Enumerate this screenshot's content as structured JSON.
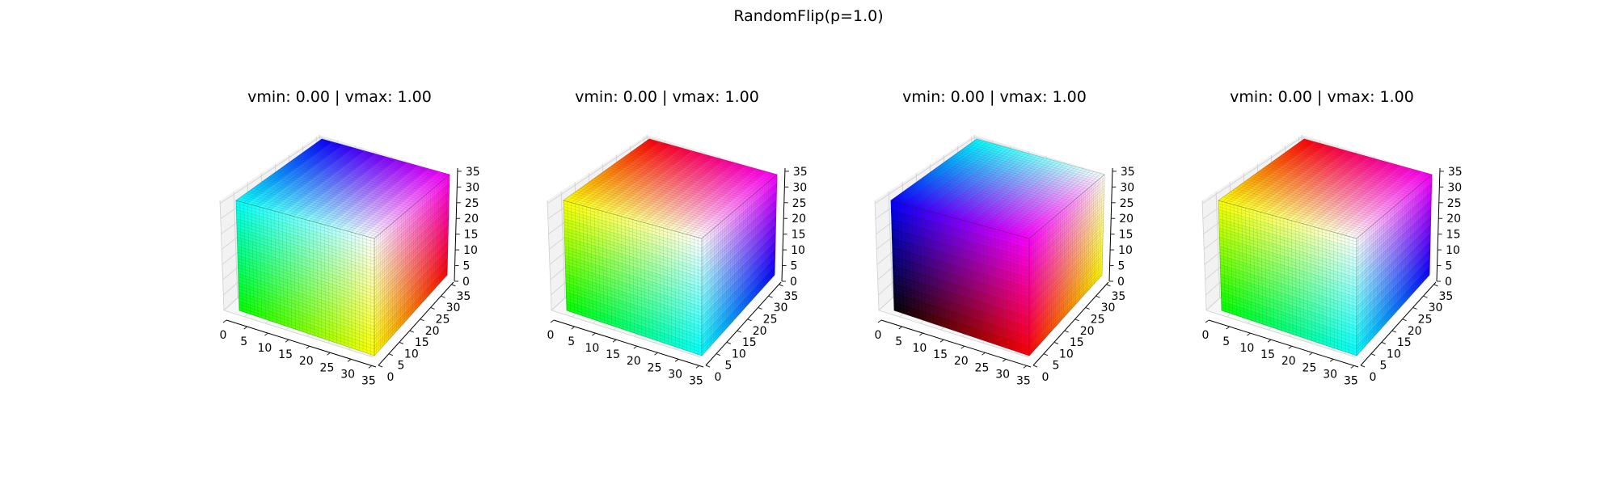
{
  "figure": {
    "title": "RandomFlip(p=1.0)"
  },
  "chart_data": [
    {
      "type": "voxel-3d",
      "title": "vmin: 0.00 | vmax: 1.00",
      "x_ticks": [
        0,
        5,
        10,
        15,
        20,
        25,
        30,
        35
      ],
      "y_ticks": [
        0,
        5,
        10,
        15,
        20,
        25,
        30,
        35
      ],
      "z_ticks": [
        0,
        5,
        10,
        15,
        20,
        25,
        30,
        35
      ],
      "xlim": [
        0,
        36
      ],
      "ylim": [
        0,
        36
      ],
      "zlim": [
        0,
        36
      ],
      "grid": true,
      "face_colors": {
        "top": [
          "#00ffff",
          "#0000ff",
          "#ff00ff",
          "#ffffff"
        ],
        "front": [
          "#00ffff",
          "#ffffff",
          "#ffff00",
          "#00ff00"
        ],
        "side": [
          "#ffffff",
          "#ff00ff",
          "#ff0000",
          "#ffff00"
        ]
      }
    },
    {
      "type": "voxel-3d",
      "title": "vmin: 0.00 | vmax: 1.00",
      "x_ticks": [
        0,
        5,
        10,
        15,
        20,
        25,
        30,
        35
      ],
      "y_ticks": [
        0,
        5,
        10,
        15,
        20,
        25,
        30,
        35
      ],
      "z_ticks": [
        0,
        5,
        10,
        15,
        20,
        25,
        30,
        35
      ],
      "xlim": [
        0,
        36
      ],
      "ylim": [
        0,
        36
      ],
      "zlim": [
        0,
        36
      ],
      "grid": true,
      "face_colors": {
        "top": [
          "#ffff00",
          "#ff0000",
          "#ff00ff",
          "#ffffff"
        ],
        "front": [
          "#ffff00",
          "#ffffff",
          "#00ffff",
          "#00ff00"
        ],
        "side": [
          "#ffffff",
          "#ff00ff",
          "#0000ff",
          "#00ffff"
        ]
      }
    },
    {
      "type": "voxel-3d",
      "title": "vmin: 0.00 | vmax: 1.00",
      "x_ticks": [
        0,
        5,
        10,
        15,
        20,
        25,
        30,
        35
      ],
      "y_ticks": [
        0,
        5,
        10,
        15,
        20,
        25,
        30,
        35
      ],
      "z_ticks": [
        0,
        5,
        10,
        15,
        20,
        25,
        30,
        35
      ],
      "xlim": [
        0,
        36
      ],
      "ylim": [
        0,
        36
      ],
      "zlim": [
        0,
        36
      ],
      "grid": true,
      "face_colors": {
        "top": [
          "#0000ff",
          "#00ffff",
          "#ffffff",
          "#ff00ff"
        ],
        "front": [
          "#0000ff",
          "#ff00ff",
          "#ff0000",
          "#000000"
        ],
        "side": [
          "#ff00ff",
          "#ffffff",
          "#ffff00",
          "#ff0000"
        ]
      }
    },
    {
      "type": "voxel-3d",
      "title": "vmin: 0.00 | vmax: 1.00",
      "x_ticks": [
        0,
        5,
        10,
        15,
        20,
        25,
        30,
        35
      ],
      "y_ticks": [
        0,
        5,
        10,
        15,
        20,
        25,
        30,
        35
      ],
      "z_ticks": [
        0,
        5,
        10,
        15,
        20,
        25,
        30,
        35
      ],
      "xlim": [
        0,
        36
      ],
      "ylim": [
        0,
        36
      ],
      "zlim": [
        0,
        36
      ],
      "grid": true,
      "face_colors": {
        "top": [
          "#ffff00",
          "#ff0000",
          "#ff00ff",
          "#ffffff"
        ],
        "front": [
          "#ffff00",
          "#ffffff",
          "#00ffff",
          "#00ff00"
        ],
        "side": [
          "#ffffff",
          "#ff00ff",
          "#0000ff",
          "#00ffff"
        ]
      }
    }
  ]
}
